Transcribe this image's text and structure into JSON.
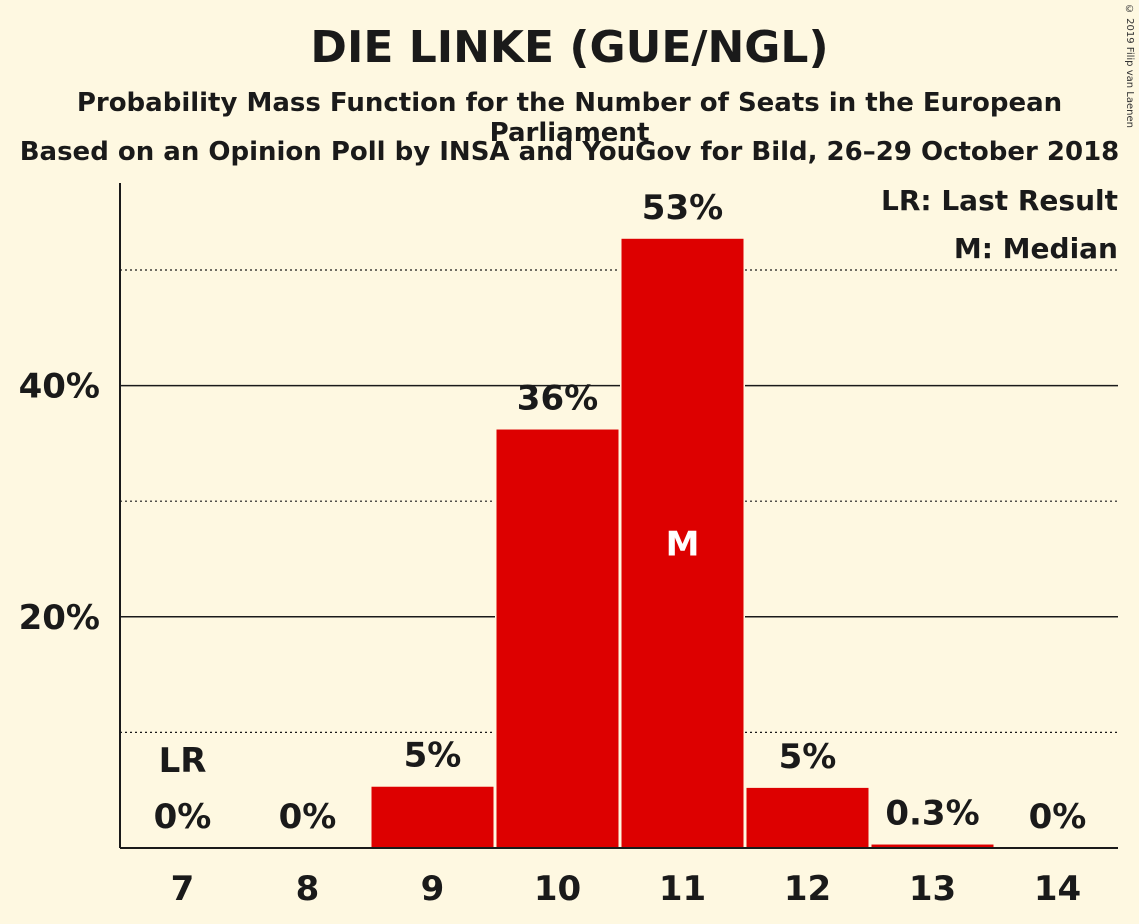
{
  "chart_data": {
    "type": "bar",
    "title": "DIE LINKE (GUE/NGL)",
    "subtitle": "Probability Mass Function for the Number of Seats in the European Parliament",
    "subtitle2": "Based on an Opinion Poll by INSA and YouGov for Bild, 26–29 October 2018",
    "categories": [
      "7",
      "8",
      "9",
      "10",
      "11",
      "12",
      "13",
      "14"
    ],
    "values": [
      0,
      0,
      5.3,
      36.2,
      52.7,
      5.2,
      0.3,
      0
    ],
    "value_labels": [
      "0%",
      "0%",
      "5%",
      "36%",
      "53%",
      "5%",
      "0.3%",
      "0%"
    ],
    "ylim": [
      0,
      57.5
    ],
    "yticks": [
      {
        "value": 20,
        "label": "20%"
      },
      {
        "value": 40,
        "label": "40%"
      }
    ],
    "solid_gridlines": [
      20,
      40
    ],
    "dotted_gridlines": [
      10,
      30,
      50
    ],
    "bar_color": "#DD0000",
    "median_category": "11",
    "median_marker": "M",
    "last_result_category": "7",
    "last_result_marker": "LR",
    "legend": [
      "LR: Last Result",
      "M: Median"
    ],
    "legend_position": "top-right"
  },
  "copyright": "© 2019 Filip van Laenen"
}
